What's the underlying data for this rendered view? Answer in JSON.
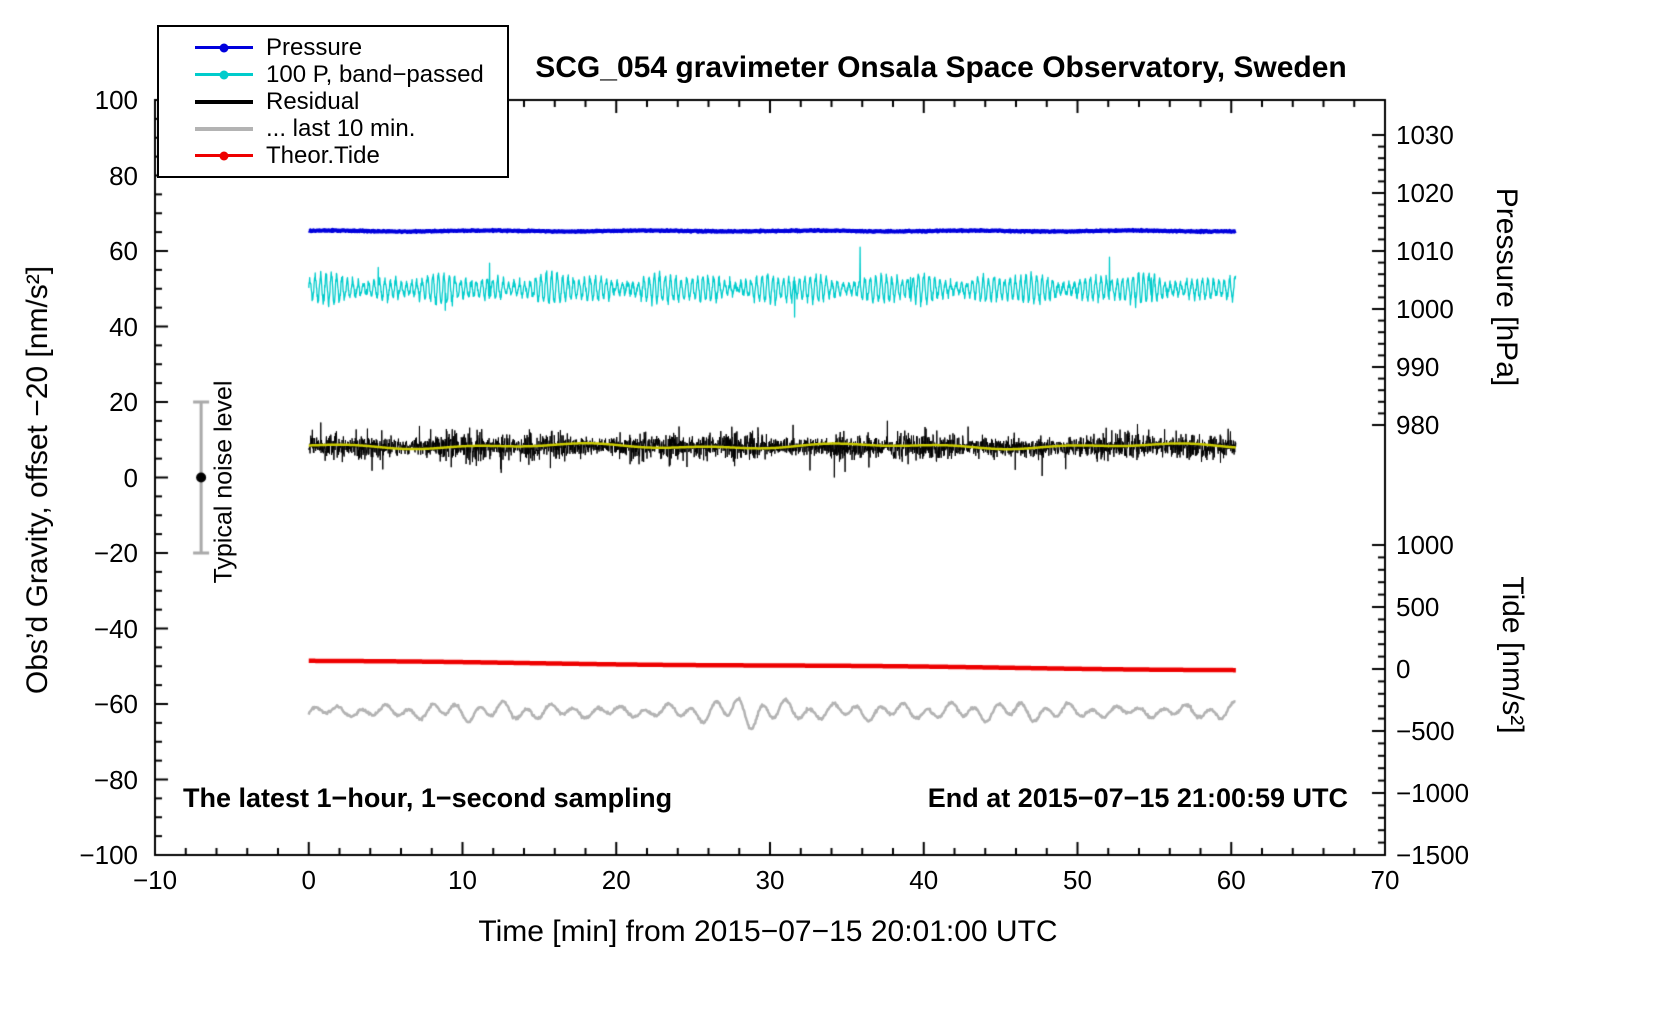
{
  "chart": {
    "title": "SCG_054 gravimeter Onsala Space Observatory, Sweden",
    "xlabel": "Time [min] from 2015−07−15 20:01:00 UTC",
    "left_axis_label": "Obs’d Gravity, offset −20 [nm/s²]",
    "right_axis_pressure_label": "Pressure [hPa]",
    "right_axis_tide_label": "Tide [nm/s²]",
    "annotation_left": "The latest 1−hour, 1−second sampling",
    "annotation_right": "End at 2015−07−15 21:00:59 UTC",
    "noise_label": "Typical noise level"
  },
  "legend": [
    {
      "label": "Pressure",
      "color": "#0000dd",
      "marker": "line-dot"
    },
    {
      "label": "100 P, band−passed",
      "color": "#00cccc",
      "marker": "line-dot"
    },
    {
      "label": "Residual",
      "color": "#000000",
      "marker": "line"
    },
    {
      "label": "... last 10 min.",
      "color": "#b3b3b3",
      "marker": "line"
    },
    {
      "label": "Theor.Tide",
      "color": "#ee0000",
      "marker": "line-dot"
    }
  ],
  "chart_data": {
    "type": "line",
    "title": "SCG_054 gravimeter Onsala Space Observatory, Sweden",
    "xlabel": "Time [min] from 2015−07−15 20:01:00 UTC",
    "x_axis": {
      "range": [
        -10,
        70
      ],
      "major_values": [
        -10,
        0,
        10,
        20,
        30,
        40,
        50,
        60,
        70
      ],
      "labels": [
        "−10",
        "0",
        "10",
        "20",
        "30",
        "40",
        "50",
        "60",
        "70"
      ],
      "minor_step": 2
    },
    "left_axis": {
      "label": "Obs’d Gravity, offset −20 [nm/s²]",
      "range": [
        -100,
        100
      ],
      "major_values": [
        100,
        80,
        60,
        40,
        20,
        0,
        -20,
        -40,
        -60,
        -80,
        -100
      ],
      "labels": [
        "100",
        "80",
        "60",
        "40",
        "20",
        "0",
        "−20",
        "−40",
        "−60",
        "−80",
        "−100"
      ],
      "minor_step": 5
    },
    "pressure_axis": {
      "label": "Pressure [hPa]",
      "major_values": [
        1030,
        1020,
        1010,
        1000,
        990,
        980
      ],
      "labels": [
        "1030",
        "1020",
        "1010",
        "1000",
        "990",
        "980"
      ],
      "minor_step": 2
    },
    "tide_axis": {
      "label": "Tide [nm/s²]",
      "major_values": [
        1000,
        500,
        0,
        -500,
        -1000,
        -1500
      ],
      "labels": [
        "1000",
        "500",
        "0",
        "−500",
        "−1000",
        "−1500"
      ],
      "minor_step": 100
    },
    "noise_bar": {
      "x": -7,
      "center": 0,
      "half_range": 20,
      "bar_color": "#aaaaaa",
      "dot_color": "#000000"
    },
    "grid": false,
    "legend_position": "top-left",
    "series": [
      {
        "name": "Pressure",
        "kind": "flat",
        "color": "#0000dd",
        "width": 4,
        "baseline": 65.3,
        "noise": 0.25,
        "x_start": 0,
        "x_end": 60.3,
        "seed": 101,
        "note": "flat near 65 on gravity scale, about 1013 hPa on pressure scale"
      },
      {
        "name": "100 P, band−passed",
        "kind": "bandpassed",
        "color": "#00cccc",
        "width": 1.3,
        "baseline": 50,
        "amplitude": 3.2,
        "spike_amplitude": 10,
        "x_start": 0,
        "x_end": 60.3,
        "seed": 202,
        "note": "oscillates around 50, excursions roughly 36 to 62"
      },
      {
        "name": "Residual",
        "kind": "residual",
        "color": "#000000",
        "width": 1,
        "baseline": 8.2,
        "amplitude": 2.0,
        "x_start": 0,
        "x_end": 60.3,
        "seed": 303,
        "note": "dense noise band around 8, bursts to about 0 and 18"
      },
      {
        "name": "Residual smoothed",
        "kind": "smooth",
        "color": "#cccc00",
        "width": 2.5,
        "baseline": 8.3,
        "amplitude": 0.8,
        "x_start": 0,
        "x_end": 60.3,
        "seed": 404,
        "note": "olive line running through the residual band"
      },
      {
        "name": "Theor.Tide",
        "kind": "trend",
        "color": "#ee0000",
        "width": 4.5,
        "y_start": -48.6,
        "y_end": -51.0,
        "x_start": 0,
        "x_end": 60.3,
        "seed": 505,
        "note": "slowly declining, about +40 to 0 on tide scale"
      },
      {
        "name": "... last 10 min.",
        "kind": "wavy",
        "color": "#b3b3b3",
        "width": 2.5,
        "baseline": -62,
        "amplitude": 2.2,
        "x_start": 0,
        "x_end": 60.3,
        "seed": 606,
        "note": "smooth wavy residual of last 10 min, larger excursions near t=28-31"
      }
    ]
  }
}
